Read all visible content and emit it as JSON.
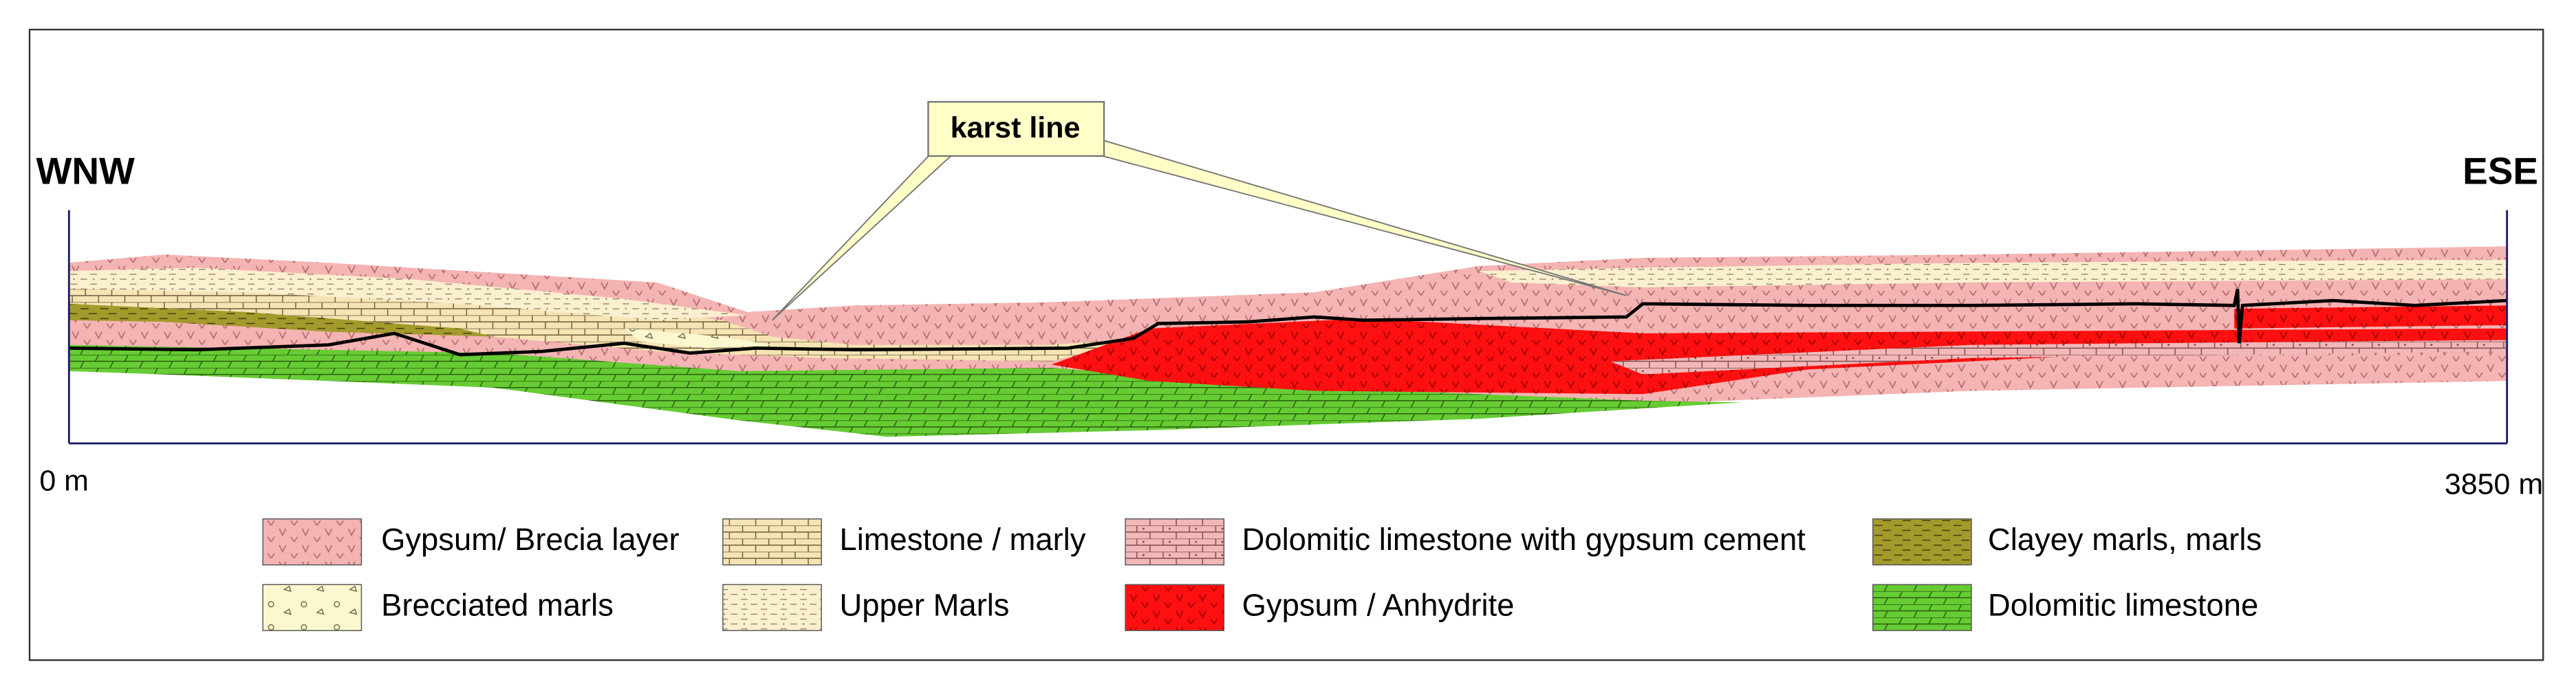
{
  "section": {
    "left_label": "WNW",
    "right_label": "ESE",
    "start_distance": "0 m",
    "end_distance": "3850 m",
    "callout": "karst line"
  },
  "legend": [
    {
      "label": "Gypsum/ Brecia layer"
    },
    {
      "label": "Limestone / marly"
    },
    {
      "label": "Dolomitic limestone with gypsum cement"
    },
    {
      "label": "Clayey marls, marls"
    },
    {
      "label": "Brecciated marls"
    },
    {
      "label": "Upper Marls"
    },
    {
      "label": "Gypsum / Anhydrite"
    },
    {
      "label": "Dolomitic limestone"
    }
  ]
}
